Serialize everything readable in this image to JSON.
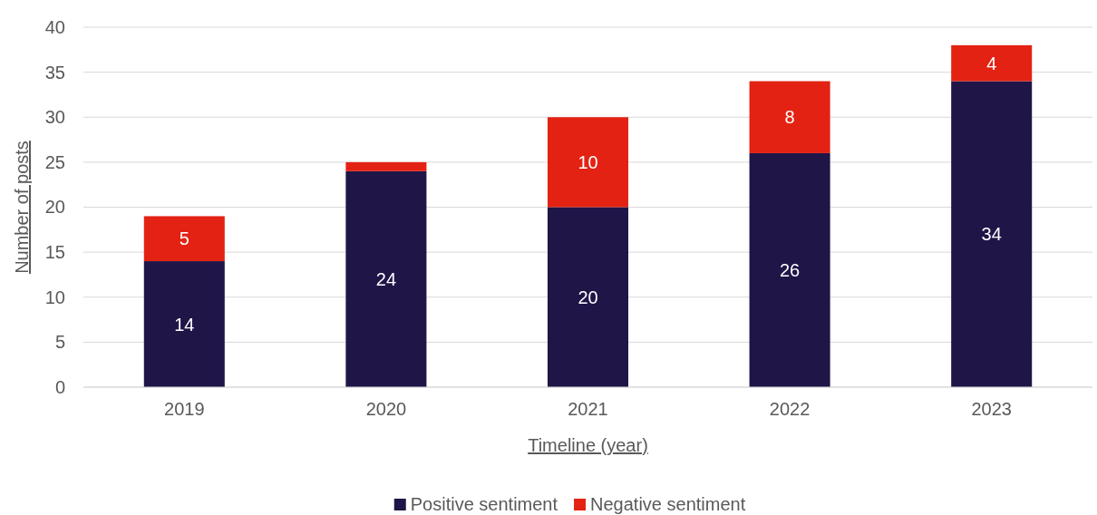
{
  "chart_data": {
    "type": "bar",
    "stacked": true,
    "xlabel": "Timeline (year)",
    "ylabel": "Number of posts",
    "categories": [
      "2019",
      "2020",
      "2021",
      "2022",
      "2023"
    ],
    "series": [
      {
        "name": "Positive sentiment",
        "color": "#1f1547",
        "values": [
          14,
          24,
          20,
          26,
          34
        ],
        "value_labels": [
          "14",
          "24",
          "20",
          "26",
          "34"
        ]
      },
      {
        "name": "Negative sentiment",
        "color": "#e32213",
        "values": [
          5,
          1,
          10,
          8,
          4
        ],
        "value_labels": [
          "5",
          null,
          "10",
          "8",
          "4"
        ]
      }
    ],
    "ylim": [
      0,
      40
    ],
    "yticks": [
      0,
      5,
      10,
      15,
      20,
      25,
      30,
      35,
      40
    ],
    "grid": "y",
    "legend": "bottom"
  }
}
